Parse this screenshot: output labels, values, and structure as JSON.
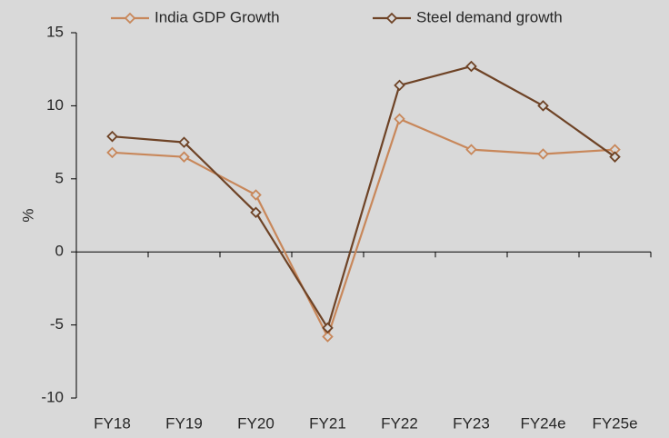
{
  "chart_data": {
    "type": "line",
    "y_label": "%",
    "categories": [
      "FY18",
      "FY19",
      "FY20",
      "FY21",
      "FY22",
      "FY23",
      "FY24e",
      "FY25e"
    ],
    "series": [
      {
        "name": "India GDP Growth",
        "color": "#c8875a",
        "values": [
          6.8,
          6.5,
          3.9,
          -5.8,
          9.1,
          7.0,
          6.7,
          7.0
        ]
      },
      {
        "name": "Steel demand growth",
        "color": "#6e4326",
        "values": [
          7.9,
          7.5,
          2.7,
          -5.2,
          11.4,
          12.7,
          10.0,
          6.5
        ]
      }
    ],
    "ylim": [
      -10,
      15
    ],
    "yticks": [
      -10,
      -5,
      0,
      5,
      10,
      15
    ],
    "legend": "top"
  }
}
